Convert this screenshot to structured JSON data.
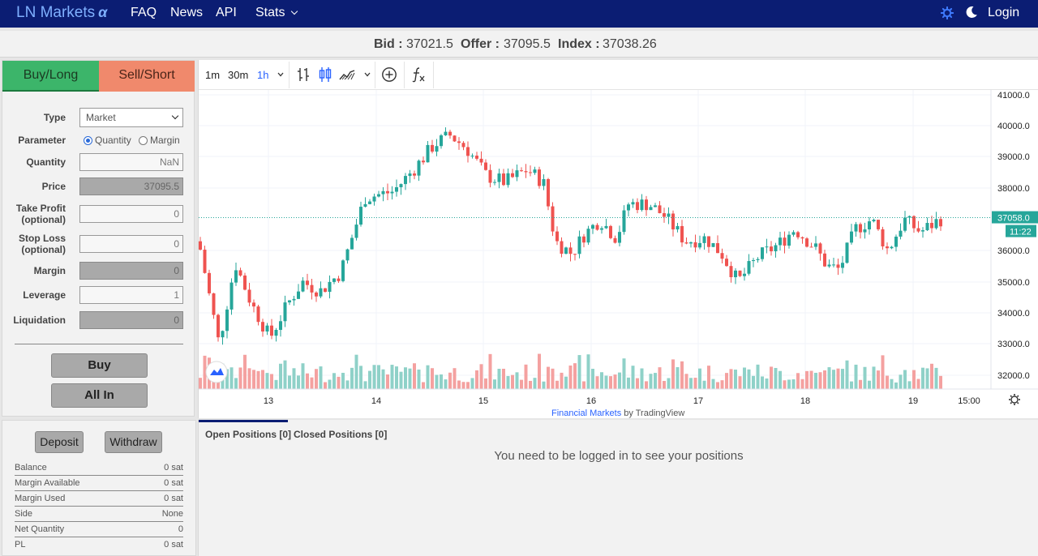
{
  "nav": {
    "brand": "LN Markets",
    "brand_suffix": "α",
    "links": [
      "FAQ",
      "News",
      "API",
      "Stats"
    ],
    "login": "Login"
  },
  "ticker": {
    "bid_label": "Bid :",
    "bid": "37021.5",
    "offer_label": "Offer :",
    "offer": "37095.5",
    "index_label": "Index :",
    "index": "37038.26"
  },
  "order": {
    "tabs": {
      "buy": "Buy/Long",
      "sell": "Sell/Short"
    },
    "type_label": "Type",
    "type_value": "Market",
    "parameter_label": "Parameter",
    "param_quantity": "Quantity",
    "param_margin": "Margin",
    "quantity_label": "Quantity",
    "quantity_value": "NaN",
    "price_label": "Price",
    "price_value": "37095.5",
    "take_profit_label_1": "Take Profit",
    "take_profit_label_2": "(optional)",
    "take_profit_value": "0",
    "stop_loss_label_1": "Stop Loss",
    "stop_loss_label_2": "(optional)",
    "stop_loss_value": "0",
    "margin_label": "Margin",
    "margin_value": "0",
    "leverage_label": "Leverage",
    "leverage_value": "1",
    "liquidation_label": "Liquidation",
    "liquidation_value": "0",
    "buy_button": "Buy",
    "all_in_button": "All In"
  },
  "chart": {
    "timeframes": [
      "1m",
      "30m",
      "1h"
    ],
    "active_timeframe": "1h",
    "price_ticks": [
      "41000.0",
      "40000.0",
      "39000.0",
      "38000.0",
      "36000.0",
      "35000.0",
      "34000.0",
      "33000.0",
      "32000.0"
    ],
    "current_price": "37058.0",
    "countdown": "11:22",
    "x_ticks": [
      "13",
      "14",
      "15",
      "16",
      "17",
      "18",
      "19",
      "15:00"
    ],
    "attribution_link": "Financial Markets",
    "attribution_suffix": "by TradingView",
    "colors": {
      "up": "#26a69a",
      "down": "#ef5350",
      "up_volume": "#8fd1c8",
      "down_volume": "#f4a1a0"
    }
  },
  "account": {
    "deposit": "Deposit",
    "withdraw": "Withdraw",
    "rows": [
      {
        "label": "Balance",
        "value": "0 sat"
      },
      {
        "label": "Margin Available",
        "value": "0 sat"
      },
      {
        "label": "Margin Used",
        "value": "0 sat"
      },
      {
        "label": "Side",
        "value": "None"
      },
      {
        "label": "Net Quantity",
        "value": "0"
      },
      {
        "label": "PL",
        "value": "0 sat"
      }
    ]
  },
  "positions": {
    "open_tab": "Open Positions [0]",
    "closed_tab": "Closed Positions [0]",
    "message": "You need to be logged in to see your positions"
  }
}
